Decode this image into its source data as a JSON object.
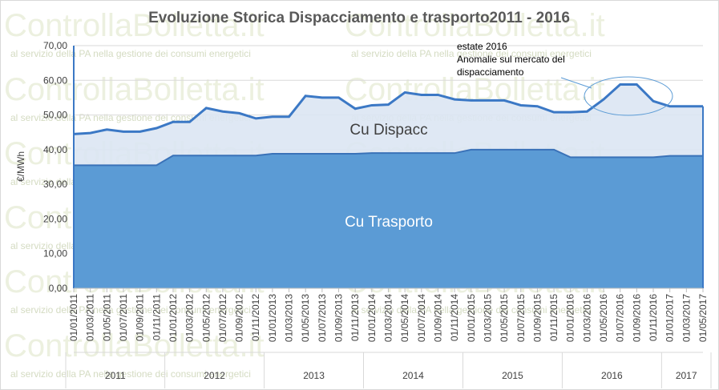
{
  "chart_data": {
    "type": "stacked_area",
    "title": "Evoluzione Storica Dispacciamento e trasporto2011 - 2016",
    "y_label": "€/MWh",
    "categories": [
      "01/01/2011",
      "01/03/2011",
      "01/05/2011",
      "01/07/2011",
      "01/09/2011",
      "01/11/2011",
      "01/01/2012",
      "01/03/2012",
      "01/05/2012",
      "01/07/2012",
      "01/09/2012",
      "01/11/2012",
      "01/01/2013",
      "01/03/2013",
      "01/05/2013",
      "01/07/2013",
      "01/09/2013",
      "01/11/2013",
      "01/01/2014",
      "01/03/2014",
      "01/05/2014",
      "01/07/2014",
      "01/09/2014",
      "01/11/2014",
      "01/01/2015",
      "01/03/2015",
      "01/05/2015",
      "01/07/2015",
      "01/09/2015",
      "01/11/2015",
      "01/01/2016",
      "01/03/2016",
      "01/05/2016",
      "01/07/2016",
      "01/09/2016",
      "01/11/2016",
      "01/01/2017",
      "01/03/2017",
      "01/05/2017"
    ],
    "year_groups": [
      "2011",
      "2012",
      "2013",
      "2014",
      "2015",
      "2016",
      "2017"
    ],
    "series": [
      {
        "name": "Cu Trasporto",
        "color": "#5b9bd5",
        "line_color": "#3a72b8",
        "values": [
          35.5,
          35.5,
          35.5,
          35.5,
          35.5,
          35.5,
          38.3,
          38.3,
          38.3,
          38.3,
          38.3,
          38.3,
          38.8,
          38.8,
          38.8,
          38.8,
          38.8,
          38.8,
          39.0,
          39.0,
          39.0,
          39.0,
          39.0,
          39.0,
          40.0,
          40.0,
          40.0,
          40.0,
          40.0,
          40.0,
          37.8,
          37.8,
          37.8,
          37.8,
          37.8,
          37.8,
          38.2,
          38.2,
          38.2
        ]
      },
      {
        "name": "Cu Dispacc",
        "color": "#dbe6f3",
        "line_color": "#3b78c5",
        "values": [
          9.0,
          9.3,
          10.3,
          9.7,
          9.7,
          10.7,
          9.7,
          9.7,
          13.7,
          12.7,
          12.2,
          10.7,
          10.7,
          10.7,
          16.7,
          16.2,
          16.2,
          13.0,
          13.8,
          14.0,
          17.5,
          16.8,
          16.8,
          15.5,
          14.2,
          14.2,
          14.2,
          12.8,
          12.5,
          10.8,
          13.0,
          13.2,
          16.7,
          21.0,
          21.0,
          16.2,
          14.3,
          14.3,
          14.3
        ]
      }
    ],
    "ylim": [
      0,
      70
    ],
    "yticks": [
      {
        "value": 0,
        "label": "0,00"
      },
      {
        "value": 10,
        "label": "10,00"
      },
      {
        "value": 20,
        "label": "20,00"
      },
      {
        "value": 30,
        "label": "30,00"
      },
      {
        "value": 40,
        "label": "40,00"
      },
      {
        "value": 50,
        "label": "50,00"
      },
      {
        "value": 60,
        "label": "60,00"
      },
      {
        "value": 70,
        "label": "70,00"
      }
    ],
    "grid": true,
    "annotation": [
      "estate 2016",
      "Anomalie sul mercato del",
      "dispacciamento"
    ],
    "watermark": {
      "brand": "ControllaBolletta.it",
      "tagline": "al servizio della PA nella gestione dei consumi energetici"
    }
  }
}
